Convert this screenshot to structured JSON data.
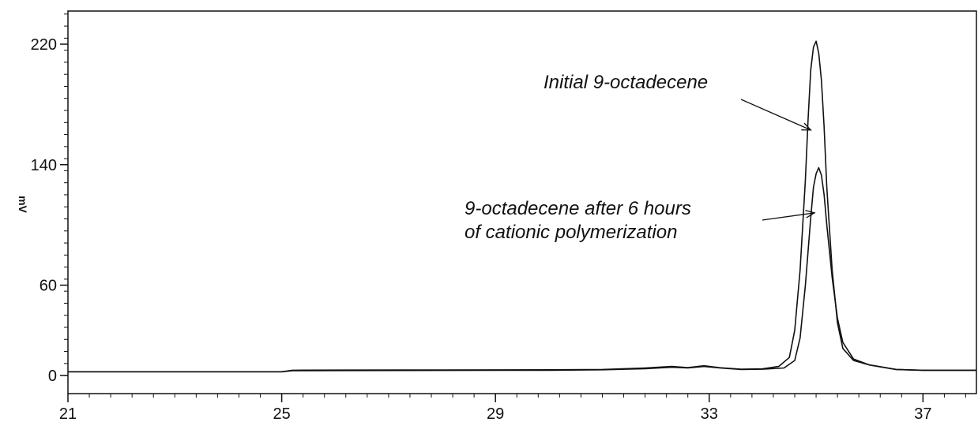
{
  "chart_data": {
    "type": "line",
    "title": "",
    "xlabel": "",
    "ylabel": "mV",
    "xlim": [
      21,
      38
    ],
    "ylim": [
      -12,
      242
    ],
    "x_ticks": [
      21,
      25,
      29,
      33,
      37
    ],
    "y_ticks": [
      0,
      60,
      140,
      220
    ],
    "grid": false,
    "legend": "none",
    "series": [
      {
        "color": "#111111",
        "points": [
          [
            21,
            2.5
          ],
          [
            25,
            2.5
          ],
          [
            25.2,
            3.5
          ],
          [
            26,
            3.6
          ],
          [
            28,
            3.7
          ],
          [
            30,
            3.8
          ],
          [
            31,
            4
          ],
          [
            31.8,
            5
          ],
          [
            32.3,
            6
          ],
          [
            32.6,
            5.3
          ],
          [
            32.9,
            6.5
          ],
          [
            33.2,
            5.2
          ],
          [
            33.6,
            4.2
          ],
          [
            34,
            4.5
          ],
          [
            34.3,
            6
          ],
          [
            34.5,
            12
          ],
          [
            34.6,
            30
          ],
          [
            34.7,
            70
          ],
          [
            34.8,
            130
          ],
          [
            34.85,
            170
          ],
          [
            34.9,
            203
          ],
          [
            34.95,
            218
          ],
          [
            35.0,
            222
          ],
          [
            35.05,
            214
          ],
          [
            35.1,
            196
          ],
          [
            35.15,
            165
          ],
          [
            35.2,
            125
          ],
          [
            35.3,
            70
          ],
          [
            35.4,
            35
          ],
          [
            35.5,
            18
          ],
          [
            35.7,
            10
          ],
          [
            36,
            7
          ],
          [
            36.5,
            4
          ],
          [
            37,
            3.5
          ],
          [
            38,
            3.5
          ]
        ]
      },
      {
        "color": "#111111",
        "points": [
          [
            21,
            2.5
          ],
          [
            25,
            2.5
          ],
          [
            25.2,
            3.2
          ],
          [
            26,
            3.3
          ],
          [
            28,
            3.4
          ],
          [
            30,
            3.5
          ],
          [
            31,
            3.8
          ],
          [
            31.8,
            4.5
          ],
          [
            32.3,
            5.5
          ],
          [
            32.6,
            5
          ],
          [
            32.9,
            6
          ],
          [
            33.2,
            5
          ],
          [
            33.6,
            4
          ],
          [
            34,
            4.2
          ],
          [
            34.4,
            5
          ],
          [
            34.6,
            10
          ],
          [
            34.7,
            25
          ],
          [
            34.8,
            60
          ],
          [
            34.9,
            105
          ],
          [
            34.95,
            125
          ],
          [
            35.0,
            134
          ],
          [
            35.05,
            138
          ],
          [
            35.1,
            133
          ],
          [
            35.15,
            120
          ],
          [
            35.2,
            100
          ],
          [
            35.3,
            65
          ],
          [
            35.4,
            38
          ],
          [
            35.5,
            22
          ],
          [
            35.7,
            11
          ],
          [
            36,
            7
          ],
          [
            36.5,
            4
          ],
          [
            37,
            3.5
          ],
          [
            38,
            3.5
          ]
        ]
      }
    ],
    "annotations": [
      {
        "lines": [
          "Initial 9-octadecene"
        ],
        "arrow_to": [
          34.9,
          163
        ]
      },
      {
        "lines": [
          "9-octadecene after 6 hours",
          "of cationic polymerization"
        ],
        "arrow_to": [
          34.97,
          108
        ]
      }
    ]
  }
}
